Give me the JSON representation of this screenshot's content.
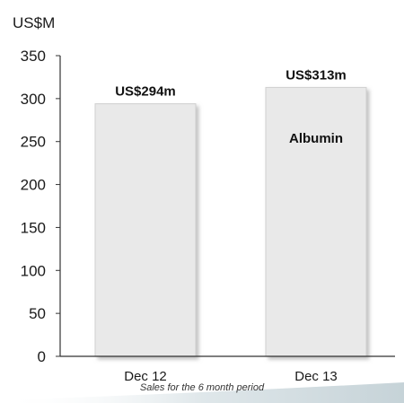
{
  "chart_data": {
    "type": "bar",
    "unit_label": "US$M",
    "categories": [
      "Dec 12",
      "Dec 13"
    ],
    "values": [
      294,
      313
    ],
    "data_labels": [
      "US$294m",
      "US$313m"
    ],
    "series": [
      {
        "name": "Albumin",
        "values": [
          294,
          313
        ]
      }
    ],
    "ylim": [
      0,
      350
    ],
    "yticks": [
      "0",
      "50",
      "100",
      "150",
      "200",
      "250",
      "300",
      "350"
    ],
    "caption": "Sales for the 6 month period",
    "bar_color": "#e9e9e9",
    "bar_edge_color": "#d0d0d0",
    "shadow_color": "#b8b8b8",
    "footer_accent": "#cfd9dc",
    "grid": false
  }
}
